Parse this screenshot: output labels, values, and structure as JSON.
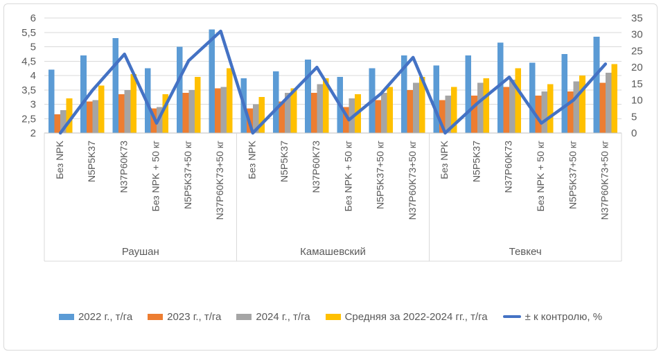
{
  "chart_data": {
    "type": "bar",
    "combo": "clustered bars with line on secondary axis",
    "title": "",
    "groups": [
      "Раушан",
      "Камашевский",
      "Тевкеч"
    ],
    "categories_per_group": [
      "Без NPK",
      "N5P5K37",
      "N37P60K73",
      "Без NPK + 50 кг",
      "N5P5K37+50 кг",
      "N37P60K73+50 кг"
    ],
    "series": [
      {
        "name": "2022 г., т/га",
        "kind": "bar",
        "axis": "left",
        "color": "#5B9BD5",
        "values": [
          4.2,
          4.7,
          5.3,
          4.25,
          5.0,
          5.6,
          3.9,
          4.15,
          4.55,
          3.95,
          4.25,
          4.7,
          4.35,
          4.7,
          5.15,
          4.45,
          4.75,
          5.35
        ]
      },
      {
        "name": "2023 г., т/га",
        "kind": "bar",
        "axis": "left",
        "color": "#ED7D31",
        "values": [
          2.65,
          3.1,
          3.35,
          2.85,
          3.4,
          3.55,
          2.85,
          3.1,
          3.4,
          2.9,
          3.15,
          3.5,
          3.15,
          3.3,
          3.6,
          3.3,
          3.45,
          3.75
        ]
      },
      {
        "name": "2024 г., т/га",
        "kind": "bar",
        "axis": "left",
        "color": "#A5A5A5",
        "values": [
          2.8,
          3.15,
          3.5,
          2.9,
          3.5,
          3.6,
          3.0,
          3.4,
          3.7,
          3.2,
          3.4,
          3.75,
          3.3,
          3.75,
          3.85,
          3.45,
          3.8,
          4.1
        ]
      },
      {
        "name": "Средняя за 2022-2024 гг., т/га",
        "kind": "bar",
        "axis": "left",
        "color": "#FFC000",
        "values": [
          3.2,
          3.65,
          4.05,
          3.35,
          3.95,
          4.25,
          3.25,
          3.55,
          3.9,
          3.35,
          3.6,
          3.95,
          3.6,
          3.9,
          4.25,
          3.7,
          4.0,
          4.4
        ]
      },
      {
        "name": "± к контролю, %",
        "kind": "line",
        "axis": "right",
        "color": "#4472C4",
        "values": [
          0,
          13,
          24,
          3,
          22,
          31,
          0,
          10,
          20,
          4,
          12,
          23,
          0,
          9,
          17,
          3,
          10,
          21
        ]
      }
    ],
    "left_axis": {
      "min": 2,
      "max": 6,
      "step": 0.5,
      "tick_labels": [
        "2",
        "2,5",
        "3",
        "3,5",
        "4",
        "4,5",
        "5",
        "5,5",
        "6"
      ]
    },
    "right_axis": {
      "min": 0,
      "max": 35,
      "step": 5,
      "tick_labels": [
        "0",
        "5",
        "10",
        "15",
        "20",
        "25",
        "30",
        "35"
      ]
    },
    "grid": true,
    "legend_position": "bottom"
  }
}
